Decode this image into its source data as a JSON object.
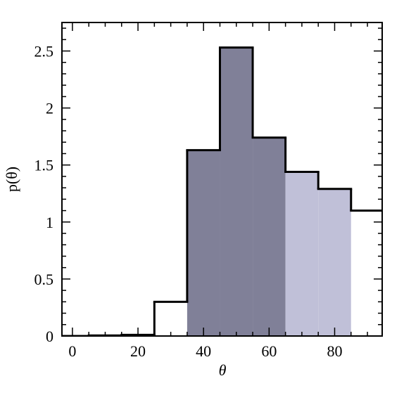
{
  "chart_data": {
    "type": "histogram",
    "x_label": "θ",
    "y_label": "p(θ)",
    "bins": [
      -5,
      5,
      15,
      25,
      35,
      45,
      55,
      65,
      75,
      85,
      95
    ],
    "values": [
      0,
      0.005,
      0.01,
      0.3,
      1.63,
      2.53,
      1.74,
      1.44,
      1.29,
      1.1
    ],
    "bar_colors": [
      null,
      null,
      null,
      null,
      "#808098",
      "#808098",
      "#808098",
      "#c0c0d8",
      "#c0c0d8",
      null
    ],
    "line_color": "#000000",
    "xlim": [
      -3.2,
      94.5
    ],
    "ylim": [
      0,
      2.75
    ],
    "xticks": [
      0,
      20,
      40,
      60,
      80
    ],
    "yticks": [
      0,
      0.5,
      1,
      1.5,
      2,
      2.5
    ],
    "xminorticks": [
      5,
      10,
      15,
      25,
      30,
      35,
      45,
      50,
      55,
      65,
      70,
      75,
      85,
      90
    ],
    "yminorticks": [
      0.1,
      0.2,
      0.3,
      0.4,
      0.6,
      0.7,
      0.8,
      0.9,
      1.1,
      1.2,
      1.3,
      1.4,
      1.6,
      1.7,
      1.8,
      1.9,
      2.1,
      2.2,
      2.3,
      2.4,
      2.6,
      2.7
    ]
  }
}
